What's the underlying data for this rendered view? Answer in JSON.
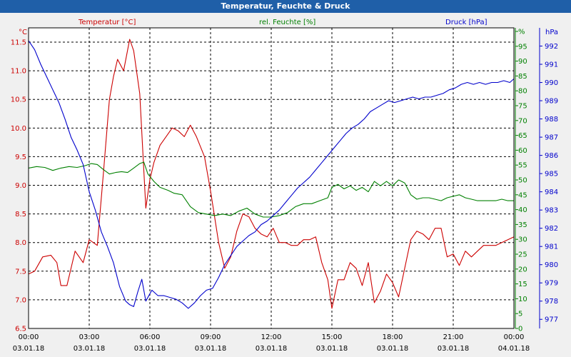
{
  "window": {
    "title": "Temperatur, Feuchte & Druck"
  },
  "legend": {
    "temp": "Temperatur [°C]",
    "hum": "rel. Feuchte [%]",
    "press": "Druck [hPa]"
  },
  "units": {
    "left": "°C",
    "right1": "%",
    "right2": "hPa"
  },
  "colors": {
    "temp": "#cc0000",
    "hum": "#008000",
    "press": "#0000cc",
    "grid": "#000000",
    "axes": "#000000",
    "title_bar": "#1f5fa8"
  },
  "chart_data": {
    "type": "line",
    "title": "Temperatur, Feuchte & Druck",
    "x_ticks": [
      {
        "h": 0,
        "time": "00:00",
        "date": "03.01.18"
      },
      {
        "h": 3,
        "time": "03:00",
        "date": "03.01.18"
      },
      {
        "h": 6,
        "time": "06:00",
        "date": "03.01.18"
      },
      {
        "h": 9,
        "time": "09:00",
        "date": "03.01.18"
      },
      {
        "h": 12,
        "time": "12:00",
        "date": "03.01.18"
      },
      {
        "h": 15,
        "time": "15:00",
        "date": "03.01.18"
      },
      {
        "h": 18,
        "time": "18:00",
        "date": "03.01.18"
      },
      {
        "h": 21,
        "time": "21:00",
        "date": "03.01.18"
      },
      {
        "h": 24,
        "time": "00:00",
        "date": "04.01.18"
      }
    ],
    "xlim": [
      0,
      24
    ],
    "axes": {
      "temp": {
        "label": "Temperatur [°C]",
        "ylim": [
          6.5,
          11.75
        ],
        "ticks": [
          "6.5",
          "7.0",
          "7.5",
          "8.0",
          "8.5",
          "9.0",
          "9.5",
          "10.0",
          "10.5",
          "11.0",
          "11.5"
        ]
      },
      "hum": {
        "label": "rel. Feuchte [%]",
        "ylim": [
          0,
          62.5
        ],
        "ticks": [
          "0",
          "5",
          "10",
          "15",
          "20",
          "25",
          "30",
          "35",
          "40",
          "45",
          "50",
          "55",
          "60",
          "65",
          "70",
          "75",
          "80",
          "85",
          "90",
          "95",
          "%"
        ]
      },
      "press": {
        "label": "Druck [hPa]",
        "ylim": [
          976.5,
          993
        ],
        "ticks": [
          "977",
          "978",
          "979",
          "980",
          "981",
          "982",
          "983",
          "984",
          "985",
          "986",
          "987",
          "988",
          "989",
          "990",
          "991",
          "992",
          "hPa"
        ]
      }
    },
    "series": [
      {
        "name": "Temperatur [°C]",
        "axis": "temp",
        "x": [
          0,
          0.3,
          0.7,
          1.1,
          1.4,
          1.6,
          1.9,
          2.3,
          2.7,
          3.0,
          3.4,
          3.7,
          4.0,
          4.2,
          4.4,
          4.7,
          5.0,
          5.2,
          5.5,
          5.8,
          6.0,
          6.2,
          6.5,
          6.8,
          7.1,
          7.4,
          7.7,
          8.0,
          8.3,
          8.7,
          9.0,
          9.4,
          9.7,
          10.0,
          10.3,
          10.6,
          10.9,
          11.2,
          11.5,
          11.8,
          12.1,
          12.4,
          12.7,
          13.0,
          13.3,
          13.6,
          13.9,
          14.2,
          14.5,
          14.8,
          15.0,
          15.3,
          15.6,
          15.9,
          16.2,
          16.5,
          16.8,
          17.1,
          17.4,
          17.7,
          18.0,
          18.3,
          18.6,
          18.9,
          19.2,
          19.5,
          19.8,
          20.1,
          20.4,
          20.7,
          21.0,
          21.3,
          21.6,
          21.9,
          22.2,
          22.5,
          22.8,
          23.1,
          23.4,
          23.7,
          24.0
        ],
        "values": [
          7.45,
          7.5,
          7.75,
          7.78,
          7.65,
          7.25,
          7.25,
          7.85,
          7.65,
          8.05,
          7.95,
          9.2,
          10.5,
          10.9,
          11.2,
          11.0,
          11.55,
          11.35,
          10.6,
          8.6,
          9.1,
          9.4,
          9.7,
          9.85,
          10.0,
          9.95,
          9.85,
          10.05,
          9.85,
          9.5,
          8.9,
          8.0,
          7.55,
          7.75,
          8.2,
          8.5,
          8.45,
          8.25,
          8.15,
          8.1,
          8.25,
          8.0,
          8.0,
          7.95,
          7.95,
          8.05,
          8.05,
          8.1,
          7.65,
          7.35,
          6.85,
          7.35,
          7.35,
          7.65,
          7.55,
          7.25,
          7.65,
          6.95,
          7.15,
          7.45,
          7.3,
          7.05,
          7.55,
          8.05,
          8.2,
          8.15,
          8.05,
          8.25,
          8.25,
          7.75,
          7.8,
          7.6,
          7.85,
          7.75,
          7.85,
          7.95,
          7.95,
          7.95,
          8.0,
          8.05,
          8.1
        ]
      },
      {
        "name": "rel. Feuchte [%]",
        "axis": "hum",
        "x": [
          0,
          0.4,
          0.8,
          1.2,
          1.6,
          2.0,
          2.4,
          2.8,
          3.1,
          3.4,
          3.7,
          4.0,
          4.3,
          4.6,
          4.9,
          5.2,
          5.5,
          5.7,
          5.9,
          6.2,
          6.5,
          6.9,
          7.2,
          7.6,
          8.0,
          8.4,
          8.8,
          9.2,
          9.6,
          10.0,
          10.4,
          10.8,
          11.2,
          11.6,
          12.0,
          12.4,
          12.8,
          13.2,
          13.6,
          14.0,
          14.4,
          14.8,
          15.0,
          15.3,
          15.6,
          15.9,
          16.2,
          16.5,
          16.8,
          17.1,
          17.4,
          17.7,
          18.0,
          18.3,
          18.6,
          18.9,
          19.2,
          19.5,
          19.8,
          20.1,
          20.4,
          20.7,
          21.0,
          21.3,
          21.6,
          21.9,
          22.2,
          22.5,
          22.8,
          23.1,
          23.4,
          23.7,
          24.0
        ],
        "values": [
          54.0,
          54.5,
          54.2,
          53.2,
          54.0,
          54.5,
          54.2,
          54.8,
          55.5,
          55.2,
          53.5,
          52.0,
          52.5,
          52.8,
          52.5,
          54.0,
          55.5,
          56.0,
          52.0,
          49.5,
          47.5,
          46.5,
          45.5,
          45.0,
          41.0,
          39.0,
          38.5,
          38.0,
          38.5,
          38.0,
          39.5,
          40.5,
          38.5,
          37.5,
          37.5,
          38.0,
          39.0,
          41.0,
          42.0,
          42.0,
          43.0,
          44.0,
          47.5,
          48.5,
          47.0,
          48.0,
          46.5,
          47.5,
          46.0,
          49.5,
          48.0,
          49.5,
          48.0,
          50.0,
          49.0,
          45.0,
          43.5,
          44.0,
          44.0,
          43.5,
          43.0,
          44.0,
          44.5,
          45.0,
          44.0,
          43.5,
          43.0,
          43.0,
          43.0,
          43.0,
          43.5,
          43.0,
          43.0
        ]
      },
      {
        "name": "Druck [hPa]",
        "axis": "press",
        "x": [
          0,
          0.3,
          0.6,
          0.9,
          1.2,
          1.5,
          1.8,
          2.1,
          2.4,
          2.7,
          3.0,
          3.3,
          3.6,
          3.9,
          4.2,
          4.5,
          4.8,
          5.0,
          5.2,
          5.4,
          5.6,
          5.8,
          6.1,
          6.4,
          6.7,
          7.0,
          7.3,
          7.6,
          7.9,
          8.2,
          8.5,
          8.8,
          9.1,
          9.4,
          9.7,
          10.0,
          10.3,
          10.6,
          10.9,
          11.2,
          11.5,
          11.8,
          12.1,
          12.4,
          12.7,
          13.0,
          13.3,
          13.6,
          13.9,
          14.2,
          14.5,
          14.8,
          15.1,
          15.4,
          15.7,
          16.0,
          16.3,
          16.6,
          16.9,
          17.2,
          17.5,
          17.8,
          18.1,
          18.4,
          18.7,
          19.0,
          19.3,
          19.6,
          19.9,
          20.2,
          20.5,
          20.8,
          21.1,
          21.4,
          21.7,
          22.0,
          22.3,
          22.6,
          22.9,
          23.2,
          23.5,
          23.8,
          24.0
        ],
        "values": [
          992.3,
          991.8,
          991.0,
          990.3,
          989.6,
          988.9,
          988.0,
          987.0,
          986.3,
          985.5,
          984.0,
          983.0,
          981.8,
          981.0,
          980.1,
          978.8,
          978.0,
          977.8,
          977.7,
          978.5,
          979.2,
          978.0,
          978.6,
          978.3,
          978.3,
          978.2,
          978.1,
          977.9,
          977.6,
          977.9,
          978.3,
          978.6,
          978.7,
          979.3,
          980.0,
          980.5,
          981.0,
          981.3,
          981.6,
          981.8,
          982.2,
          982.4,
          982.7,
          983.0,
          983.4,
          983.8,
          984.2,
          984.5,
          984.8,
          985.2,
          985.6,
          986.0,
          986.4,
          986.8,
          987.2,
          987.5,
          987.7,
          988.0,
          988.4,
          988.6,
          988.8,
          989.0,
          988.9,
          989.0,
          989.1,
          989.2,
          989.1,
          989.2,
          989.2,
          989.3,
          989.4,
          989.6,
          989.7,
          989.9,
          990.0,
          989.9,
          990.0,
          989.9,
          990.0,
          990.0,
          990.1,
          990.0,
          990.2
        ]
      }
    ]
  }
}
